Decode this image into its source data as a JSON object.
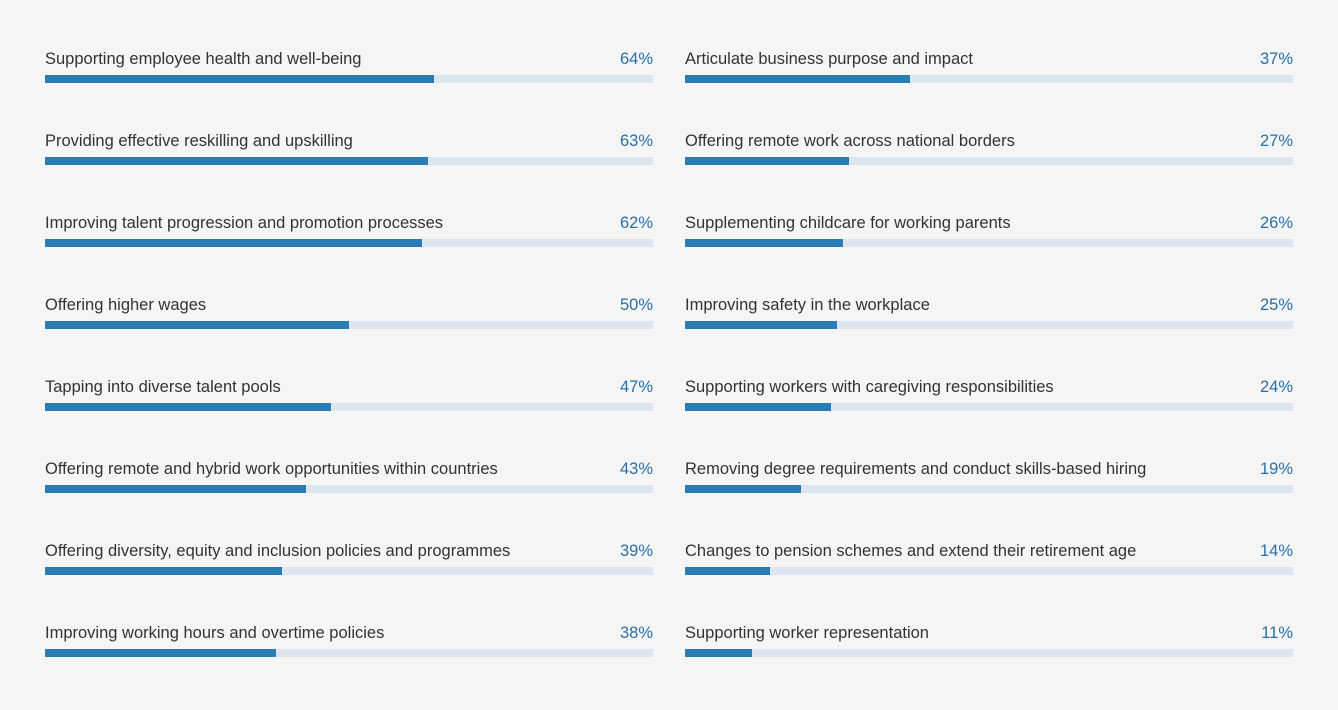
{
  "colors": {
    "bar_fill": "#2a7db4",
    "bar_track": "#dde6ee",
    "value_text": "#2a6fa8",
    "label_text": "#333333",
    "background": "#f5f5f5"
  },
  "chart_data": {
    "type": "bar",
    "orientation": "horizontal",
    "unit": "%",
    "xlim": [
      0,
      100
    ],
    "grid": false,
    "columns": [
      {
        "items": [
          {
            "label": "Supporting employee health and well-being",
            "value": 64,
            "value_label": "64%"
          },
          {
            "label": "Providing effective reskilling and upskilling",
            "value": 63,
            "value_label": "63%"
          },
          {
            "label": "Improving talent progression and promotion processes",
            "value": 62,
            "value_label": "62%"
          },
          {
            "label": "Offering higher wages",
            "value": 50,
            "value_label": "50%"
          },
          {
            "label": "Tapping into diverse talent pools",
            "value": 47,
            "value_label": "47%"
          },
          {
            "label": "Offering remote and hybrid work opportunities within countries",
            "value": 43,
            "value_label": "43%"
          },
          {
            "label": "Offering diversity, equity and inclusion policies and programmes",
            "value": 39,
            "value_label": "39%"
          },
          {
            "label": "Improving working hours and overtime policies",
            "value": 38,
            "value_label": "38%"
          }
        ]
      },
      {
        "items": [
          {
            "label": "Articulate business purpose and impact",
            "value": 37,
            "value_label": "37%"
          },
          {
            "label": "Offering remote work across national borders",
            "value": 27,
            "value_label": "27%"
          },
          {
            "label": "Supplementing childcare for working parents",
            "value": 26,
            "value_label": "26%"
          },
          {
            "label": "Improving safety in the workplace",
            "value": 25,
            "value_label": "25%"
          },
          {
            "label": "Supporting workers with caregiving responsibilities",
            "value": 24,
            "value_label": "24%"
          },
          {
            "label": "Removing degree requirements and conduct skills-based hiring",
            "value": 19,
            "value_label": "19%"
          },
          {
            "label": "Changes to pension schemes and extend their retirement age",
            "value": 14,
            "value_label": "14%"
          },
          {
            "label": "Supporting worker representation",
            "value": 11,
            "value_label": "11%"
          }
        ]
      }
    ]
  }
}
